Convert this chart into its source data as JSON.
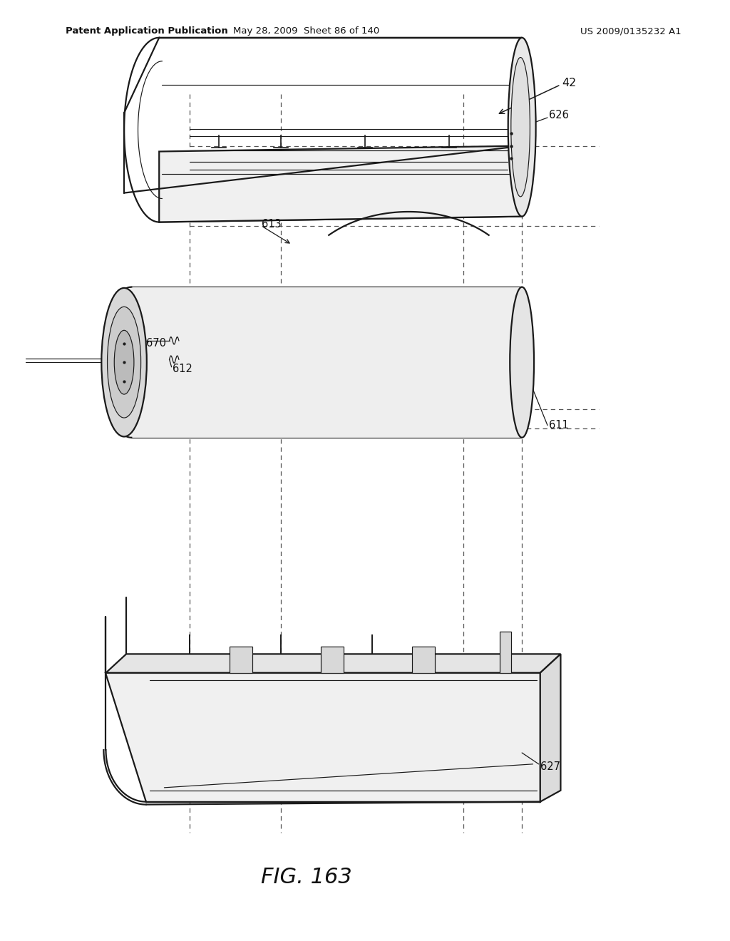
{
  "bg_color": "#ffffff",
  "header_left": "Patent Application Publication",
  "header_mid": "May 28, 2009  Sheet 86 of 140",
  "header_right": "US 2009/0135232 A1",
  "fig_label": "FIG. 163",
  "line_color": "#1a1a1a",
  "dashed_color": "#555555"
}
